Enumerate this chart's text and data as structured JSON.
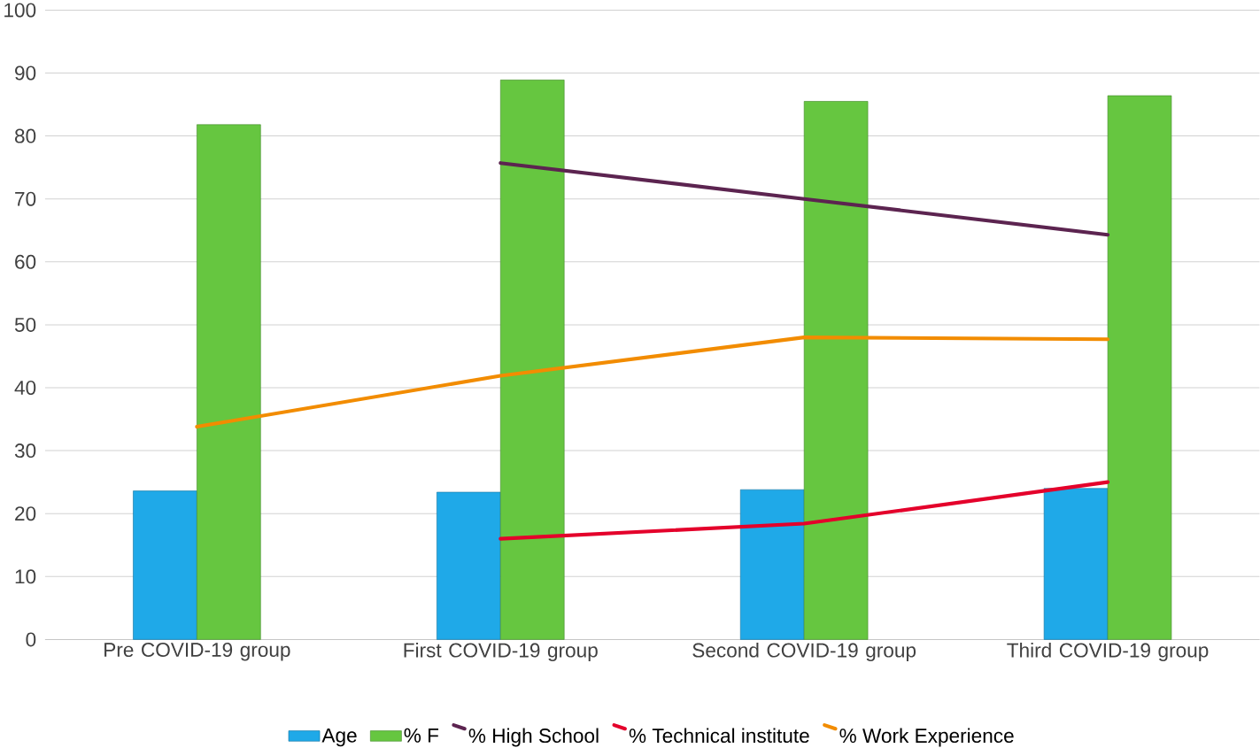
{
  "chart_data": {
    "type": "bar",
    "categories": [
      "Pre COVID-19 group",
      "First COVID-19 group",
      "Second COVID-19 group",
      "Third COVID-19 group"
    ],
    "series": [
      {
        "name": "Age",
        "color": "#1fa9e8",
        "values": [
          23.6,
          23.4,
          23.8,
          24.0
        ]
      },
      {
        "name": "%   F",
        "color": "#66c640",
        "values": [
          81.8,
          88.9,
          85.5,
          86.4
        ]
      },
      {
        "name": "% High School",
        "type": "line",
        "color": "#5c2450",
        "values": [
          null,
          75.7,
          70.0,
          64.3
        ]
      },
      {
        "name": "% Technical institute",
        "type": "line",
        "color": "#e4002b",
        "values": [
          null,
          16.0,
          18.4,
          25.0
        ]
      },
      {
        "name": "% Work Experience",
        "type": "line",
        "color": "#f28c00",
        "values": [
          33.8,
          41.9,
          48.0,
          47.7
        ]
      }
    ],
    "ylim": [
      0,
      100
    ],
    "yticks": [
      0,
      10,
      20,
      30,
      40,
      50,
      60,
      70,
      80,
      90,
      100
    ],
    "grid": "y",
    "legend": "bottom",
    "marker": "none",
    "line_style": "solid"
  }
}
